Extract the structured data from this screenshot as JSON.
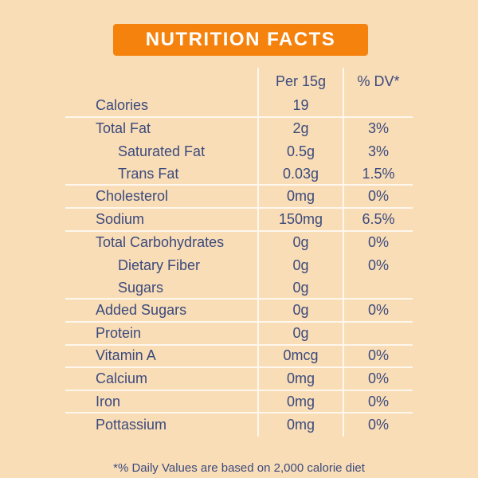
{
  "title": "NUTRITION FACTS",
  "columns": {
    "amount": "Per 15g",
    "dv": "% DV*"
  },
  "rows": [
    {
      "label": "Calories",
      "amount": "19",
      "dv": "",
      "indent": 0,
      "sep": true
    },
    {
      "label": "Total Fat",
      "amount": "2g",
      "dv": "3%",
      "indent": 0,
      "sep": false
    },
    {
      "label": "Saturated Fat",
      "amount": "0.5g",
      "dv": "3%",
      "indent": 1,
      "sep": false
    },
    {
      "label": "Trans Fat",
      "amount": "0.03g",
      "dv": "1.5%",
      "indent": 1,
      "sep": true
    },
    {
      "label": "Cholesterol",
      "amount": "0mg",
      "dv": "0%",
      "indent": 0,
      "sep": true
    },
    {
      "label": "Sodium",
      "amount": "150mg",
      "dv": "6.5%",
      "indent": 0,
      "sep": true
    },
    {
      "label": "Total Carbohydrates",
      "amount": "0g",
      "dv": "0%",
      "indent": 0,
      "sep": false
    },
    {
      "label": "Dietary Fiber",
      "amount": "0g",
      "dv": "0%",
      "indent": 1,
      "sep": false
    },
    {
      "label": "Sugars",
      "amount": "0g",
      "dv": "",
      "indent": 1,
      "sep": true
    },
    {
      "label": "Added Sugars",
      "amount": "0g",
      "dv": "0%",
      "indent": 0,
      "sep": true
    },
    {
      "label": "Protein",
      "amount": "0g",
      "dv": "",
      "indent": 0,
      "sep": true
    },
    {
      "label": "Vitamin A",
      "amount": "0mcg",
      "dv": "0%",
      "indent": 0,
      "sep": true
    },
    {
      "label": "Calcium",
      "amount": "0mg",
      "dv": "0%",
      "indent": 0,
      "sep": true
    },
    {
      "label": "Iron",
      "amount": "0mg",
      "dv": "0%",
      "indent": 0,
      "sep": true
    },
    {
      "label": "Pottassium",
      "amount": "0mg",
      "dv": "0%",
      "indent": 0,
      "sep": false
    }
  ],
  "footnote": "*% Daily Values are based on 2,000 calorie diet",
  "colors": {
    "accent": "#F5820D",
    "text": "#3B4A7E",
    "line": "#FDF7EE"
  }
}
